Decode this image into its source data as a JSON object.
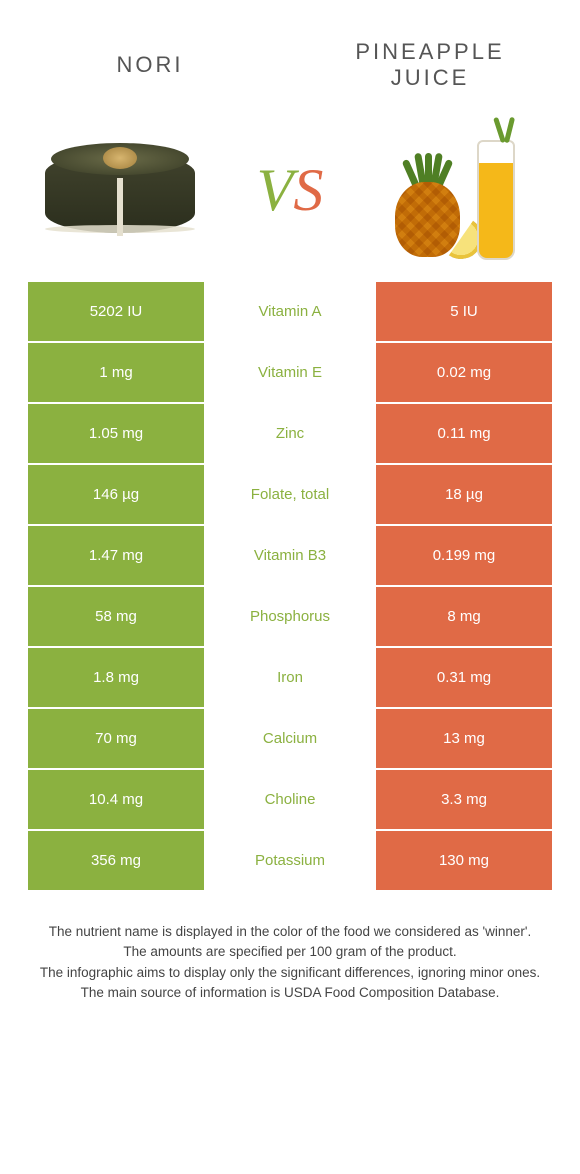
{
  "colors": {
    "green": "#8bb140",
    "orange": "#e06a46",
    "white": "#ffffff",
    "nutrient_green": "#8bb140",
    "nutrient_orange": "#e06a46"
  },
  "left_food": {
    "title": "Nori"
  },
  "right_food": {
    "title": "Pineapple Juice"
  },
  "vs": {
    "v": "V",
    "s": "S"
  },
  "rows": [
    {
      "nutrient": "Vitamin A",
      "left": "5202 IU",
      "right": "5 IU",
      "winner": "left"
    },
    {
      "nutrient": "Vitamin E",
      "left": "1 mg",
      "right": "0.02 mg",
      "winner": "left"
    },
    {
      "nutrient": "Zinc",
      "left": "1.05 mg",
      "right": "0.11 mg",
      "winner": "left"
    },
    {
      "nutrient": "Folate, total",
      "left": "146 µg",
      "right": "18 µg",
      "winner": "left"
    },
    {
      "nutrient": "Vitamin B3",
      "left": "1.47 mg",
      "right": "0.199 mg",
      "winner": "left"
    },
    {
      "nutrient": "Phosphorus",
      "left": "58 mg",
      "right": "8 mg",
      "winner": "left"
    },
    {
      "nutrient": "Iron",
      "left": "1.8 mg",
      "right": "0.31 mg",
      "winner": "left"
    },
    {
      "nutrient": "Calcium",
      "left": "70 mg",
      "right": "13 mg",
      "winner": "left"
    },
    {
      "nutrient": "Choline",
      "left": "10.4 mg",
      "right": "3.3 mg",
      "winner": "left"
    },
    {
      "nutrient": "Potassium",
      "left": "356 mg",
      "right": "130 mg",
      "winner": "left"
    }
  ],
  "footer": {
    "l1": "The nutrient name is displayed in the color of the food we considered as 'winner'.",
    "l2": "The amounts are specified per 100 gram of the product.",
    "l3": "The infographic aims to display only the significant differences, ignoring minor ones.",
    "l4": "The main source of information is USDA Food Composition Database."
  }
}
